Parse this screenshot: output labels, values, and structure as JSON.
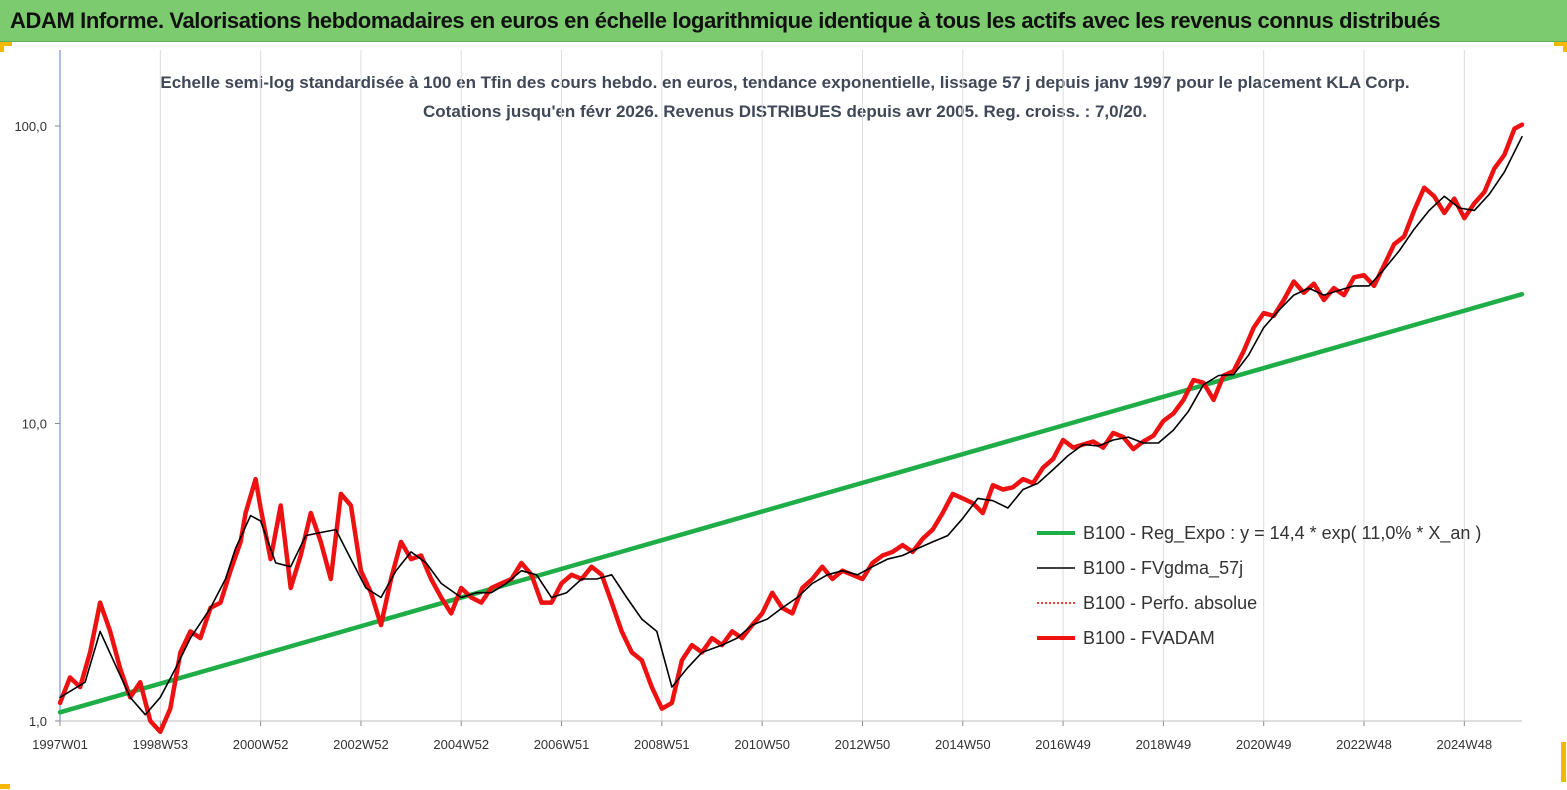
{
  "banner": {
    "title": "ADAM Informe. Valorisations hebdomadaires en euros en échelle logarithmique identique à tous les actifs avec les revenus connus distribués"
  },
  "chart_data": {
    "type": "line",
    "title": "Echelle semi-log standardisée à 100 en Tfin des cours hebdo. en euros, tendance exponentielle, lissage 57 j depuis janv 1997 pour le placement KLA Corp. Cotations jusqu'en févr 2026. Revenus DISTRIBUES depuis avr 2005. Reg. croiss. : 7,0/20.",
    "y_scale": "log",
    "ylim": [
      1,
      180
    ],
    "xlim": [
      1997.0,
      2026.15
    ],
    "y_ticks": [
      {
        "value": 1,
        "label": "1,0"
      },
      {
        "value": 10,
        "label": "10,0"
      },
      {
        "value": 100,
        "label": "100,0"
      }
    ],
    "x_ticks": [
      {
        "value": 1997.0,
        "label": "1997W01"
      },
      {
        "value": 1999.0,
        "label": "1998W53"
      },
      {
        "value": 2001.0,
        "label": "2000W52"
      },
      {
        "value": 2003.0,
        "label": "2002W52"
      },
      {
        "value": 2005.0,
        "label": "2004W52"
      },
      {
        "value": 2007.0,
        "label": "2006W51"
      },
      {
        "value": 2009.0,
        "label": "2008W51"
      },
      {
        "value": 2011.0,
        "label": "2010W50"
      },
      {
        "value": 2013.0,
        "label": "2012W50"
      },
      {
        "value": 2015.0,
        "label": "2014W50"
      },
      {
        "value": 2017.0,
        "label": "2016W49"
      },
      {
        "value": 2019.0,
        "label": "2018W49"
      },
      {
        "value": 2021.0,
        "label": "2020W49"
      },
      {
        "value": 2023.0,
        "label": "2022W48"
      },
      {
        "value": 2025.0,
        "label": "2024W48"
      }
    ],
    "grid": "vertical",
    "legend_position": "right-middle",
    "series": [
      {
        "name": "B100 - Reg_Expo : y = 14,4 * exp( 11,0% *  X_an )",
        "color": "#1fad48",
        "style": "thick",
        "x": [
          1997.0,
          2026.15
        ],
        "y": [
          1.07,
          27.2
        ]
      },
      {
        "name": "B100 - FVgdma_57j",
        "color": "#000000",
        "style": "thin",
        "x": [
          1997.0,
          1997.5,
          1997.8,
          1998.1,
          1998.4,
          1998.7,
          1999.0,
          1999.3,
          1999.6,
          2000.0,
          2000.3,
          2000.5,
          2000.8,
          2001.0,
          2001.3,
          2001.6,
          2001.9,
          2002.2,
          2002.5,
          2002.8,
          2003.1,
          2003.4,
          2003.7,
          2004.0,
          2004.3,
          2004.6,
          2005.0,
          2005.3,
          2005.6,
          2005.9,
          2006.2,
          2006.5,
          2006.8,
          2007.1,
          2007.4,
          2007.7,
          2008.0,
          2008.3,
          2008.6,
          2008.9,
          2009.2,
          2009.5,
          2009.8,
          2010.2,
          2010.5,
          2010.8,
          2011.1,
          2011.4,
          2011.7,
          2012.0,
          2012.3,
          2012.6,
          2012.9,
          2013.2,
          2013.5,
          2013.8,
          2014.1,
          2014.4,
          2014.7,
          2015.0,
          2015.3,
          2015.6,
          2015.9,
          2016.2,
          2016.5,
          2016.8,
          2017.1,
          2017.4,
          2017.7,
          2018.0,
          2018.3,
          2018.6,
          2018.9,
          2019.2,
          2019.5,
          2019.8,
          2020.1,
          2020.4,
          2020.7,
          2021.0,
          2021.3,
          2021.6,
          2021.9,
          2022.2,
          2022.5,
          2022.8,
          2023.1,
          2023.4,
          2023.7,
          2024.0,
          2024.3,
          2024.6,
          2024.9,
          2025.2,
          2025.5,
          2025.8,
          2026.15
        ],
        "y": [
          1.2,
          1.35,
          2.0,
          1.55,
          1.2,
          1.05,
          1.2,
          1.5,
          1.9,
          2.4,
          3.0,
          3.8,
          4.9,
          4.7,
          3.4,
          3.3,
          4.2,
          4.3,
          4.4,
          3.5,
          2.8,
          2.6,
          3.2,
          3.7,
          3.4,
          2.9,
          2.6,
          2.7,
          2.7,
          2.9,
          3.2,
          3.1,
          2.6,
          2.7,
          3.0,
          3.0,
          3.1,
          2.6,
          2.2,
          2.0,
          1.3,
          1.5,
          1.7,
          1.8,
          1.9,
          2.1,
          2.2,
          2.4,
          2.6,
          2.9,
          3.1,
          3.2,
          3.1,
          3.3,
          3.5,
          3.6,
          3.8,
          4.0,
          4.2,
          4.8,
          5.6,
          5.5,
          5.2,
          6.0,
          6.3,
          7.0,
          7.8,
          8.5,
          8.4,
          8.8,
          9.0,
          8.6,
          8.6,
          9.5,
          11.0,
          13.5,
          14.5,
          14.6,
          17.0,
          21.0,
          24.0,
          27.0,
          28.5,
          27.0,
          28.0,
          29.0,
          29.0,
          33.0,
          38.0,
          45.0,
          52.0,
          58.0,
          53.0,
          52.0,
          59.0,
          70.0,
          92.0
        ]
      },
      {
        "name": "B100 - Perfo. absolue",
        "color": "#e00000",
        "style": "dotted",
        "x": [],
        "y": []
      },
      {
        "name": "B100 - FVADAM",
        "color": "#ee1111",
        "style": "thick",
        "x": [
          1997.0,
          1997.2,
          1997.4,
          1997.6,
          1997.8,
          1998.0,
          1998.2,
          1998.4,
          1998.6,
          1998.8,
          1999.0,
          1999.2,
          1999.4,
          1999.6,
          1999.8,
          2000.0,
          2000.2,
          2000.4,
          2000.6,
          2000.7,
          2000.9,
          2001.0,
          2001.2,
          2001.4,
          2001.6,
          2001.8,
          2002.0,
          2002.2,
          2002.4,
          2002.6,
          2002.8,
          2003.0,
          2003.2,
          2003.4,
          2003.6,
          2003.8,
          2004.0,
          2004.2,
          2004.4,
          2004.6,
          2004.8,
          2005.0,
          2005.2,
          2005.4,
          2005.6,
          2005.8,
          2006.0,
          2006.2,
          2006.4,
          2006.6,
          2006.8,
          2007.0,
          2007.2,
          2007.4,
          2007.6,
          2007.8,
          2008.0,
          2008.2,
          2008.4,
          2008.6,
          2008.8,
          2009.0,
          2009.2,
          2009.4,
          2009.6,
          2009.8,
          2010.0,
          2010.2,
          2010.4,
          2010.6,
          2010.8,
          2011.0,
          2011.2,
          2011.4,
          2011.6,
          2011.8,
          2012.0,
          2012.2,
          2012.4,
          2012.6,
          2012.8,
          2013.0,
          2013.2,
          2013.4,
          2013.6,
          2013.8,
          2014.0,
          2014.2,
          2014.4,
          2014.6,
          2014.8,
          2015.0,
          2015.2,
          2015.4,
          2015.6,
          2015.8,
          2016.0,
          2016.2,
          2016.4,
          2016.6,
          2016.8,
          2017.0,
          2017.2,
          2017.4,
          2017.6,
          2017.8,
          2018.0,
          2018.2,
          2018.4,
          2018.6,
          2018.8,
          2019.0,
          2019.2,
          2019.4,
          2019.6,
          2019.8,
          2020.0,
          2020.2,
          2020.4,
          2020.6,
          2020.8,
          2021.0,
          2021.2,
          2021.4,
          2021.6,
          2021.8,
          2022.0,
          2022.2,
          2022.4,
          2022.6,
          2022.8,
          2023.0,
          2023.2,
          2023.4,
          2023.6,
          2023.8,
          2024.0,
          2024.2,
          2024.4,
          2024.6,
          2024.8,
          2025.0,
          2025.2,
          2025.4,
          2025.6,
          2025.8,
          2026.0,
          2026.15
        ],
        "y": [
          1.15,
          1.4,
          1.3,
          1.7,
          2.5,
          2.0,
          1.5,
          1.2,
          1.35,
          1.0,
          0.92,
          1.1,
          1.7,
          2.0,
          1.9,
          2.4,
          2.5,
          3.2,
          4.0,
          5.0,
          6.5,
          5.2,
          3.5,
          5.3,
          2.8,
          3.6,
          5.0,
          4.0,
          3.0,
          5.8,
          5.3,
          3.2,
          2.7,
          2.1,
          3.0,
          4.0,
          3.5,
          3.6,
          3.0,
          2.6,
          2.3,
          2.8,
          2.6,
          2.5,
          2.8,
          2.9,
          3.0,
          3.4,
          3.1,
          2.5,
          2.5,
          2.9,
          3.1,
          3.0,
          3.3,
          3.1,
          2.5,
          2.0,
          1.7,
          1.6,
          1.3,
          1.1,
          1.15,
          1.6,
          1.8,
          1.7,
          1.9,
          1.8,
          2.0,
          1.9,
          2.1,
          2.3,
          2.7,
          2.4,
          2.3,
          2.8,
          3.0,
          3.3,
          3.0,
          3.2,
          3.1,
          3.0,
          3.4,
          3.6,
          3.7,
          3.9,
          3.7,
          4.1,
          4.4,
          5.0,
          5.8,
          5.6,
          5.4,
          5.0,
          6.2,
          6.0,
          6.1,
          6.5,
          6.3,
          7.1,
          7.6,
          8.8,
          8.3,
          8.5,
          8.7,
          8.3,
          9.3,
          9.0,
          8.2,
          8.7,
          9.1,
          10.2,
          10.8,
          12.0,
          14.0,
          13.7,
          12.0,
          14.5,
          15.0,
          17.5,
          21.0,
          23.5,
          23.0,
          26.0,
          30.0,
          27.5,
          29.5,
          26.0,
          28.5,
          27.0,
          31.0,
          31.5,
          29.0,
          34.0,
          40.0,
          42.5,
          52.0,
          62.0,
          58.0,
          51.0,
          57.0,
          49.0,
          55.0,
          60.0,
          72.0,
          80.0,
          98.0,
          101.0
        ]
      }
    ]
  }
}
